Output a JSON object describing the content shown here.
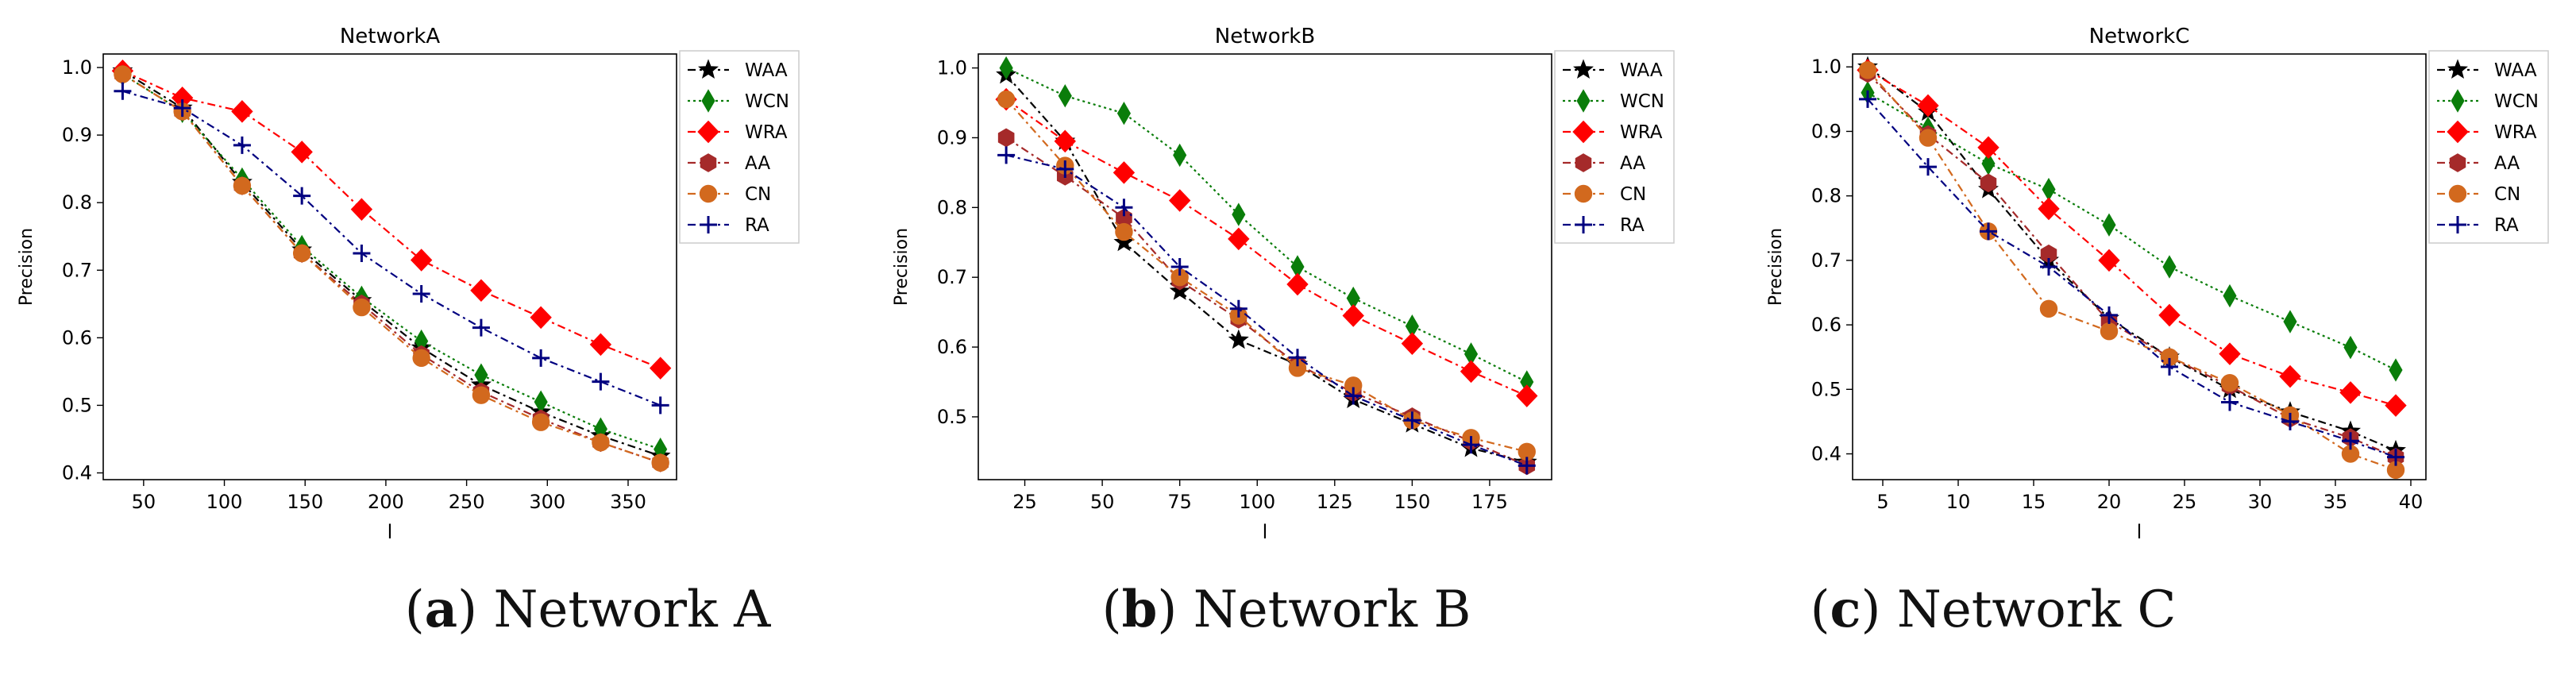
{
  "figure": {
    "panels": [
      {
        "letter": "a",
        "text": "Network A"
      },
      {
        "letter": "b",
        "text": "Network B"
      },
      {
        "letter": "c",
        "text": "Network C"
      }
    ],
    "series_styles": {
      "WAA": {
        "color": "#000000",
        "marker": "star",
        "dash": "10,5,3,5"
      },
      "WCN": {
        "color": "#0a7d0a",
        "marker": "thin-diamond",
        "dash": "3,4"
      },
      "WRA": {
        "color": "#ff0000",
        "marker": "diamond",
        "dash": "10,5,3,5"
      },
      "AA": {
        "color": "#a52a2a",
        "marker": "hexagon",
        "dash": "10,5,3,5"
      },
      "CN": {
        "color": "#d2691e",
        "marker": "circle",
        "dash": "10,5,3,5"
      },
      "RA": {
        "color": "#000080",
        "marker": "plus",
        "dash": "10,5,3,5"
      }
    }
  },
  "chart_data": [
    {
      "type": "line",
      "title": "NetworkA",
      "xlabel": "l",
      "ylabel": "Precision",
      "xlim": [
        25,
        380
      ],
      "ylim": [
        0.39,
        1.02
      ],
      "xticks": [
        50,
        100,
        150,
        200,
        250,
        300,
        350
      ],
      "yticks": [
        0.4,
        0.5,
        0.6,
        0.7,
        0.8,
        0.9,
        1.0
      ],
      "ytick_labels": [
        "0.4",
        "0.5",
        "0.6",
        "0.7",
        "0.8",
        "0.9",
        "1.0"
      ],
      "legend": "outside-right-top",
      "x": [
        37,
        74,
        111,
        148,
        185,
        222,
        259,
        296,
        333,
        370
      ],
      "series": [
        {
          "name": "WAA",
          "values": [
            0.995,
            0.94,
            0.83,
            0.73,
            0.655,
            0.585,
            0.53,
            0.49,
            0.455,
            0.425
          ]
        },
        {
          "name": "WCN",
          "values": [
            0.99,
            0.935,
            0.835,
            0.735,
            0.66,
            0.595,
            0.545,
            0.505,
            0.465,
            0.435
          ]
        },
        {
          "name": "WRA",
          "values": [
            0.995,
            0.955,
            0.935,
            0.875,
            0.79,
            0.715,
            0.67,
            0.63,
            0.59,
            0.555
          ]
        },
        {
          "name": "AA",
          "values": [
            0.99,
            0.935,
            0.825,
            0.725,
            0.65,
            0.575,
            0.52,
            0.48,
            0.445,
            0.415
          ]
        },
        {
          "name": "CN",
          "values": [
            0.99,
            0.935,
            0.825,
            0.725,
            0.645,
            0.57,
            0.515,
            0.475,
            0.445,
            0.415
          ]
        },
        {
          "name": "RA",
          "values": [
            0.965,
            0.94,
            0.885,
            0.81,
            0.725,
            0.665,
            0.615,
            0.57,
            0.535,
            0.5
          ]
        }
      ]
    },
    {
      "type": "line",
      "title": "NetworkB",
      "xlabel": "l",
      "ylabel": "Precision",
      "xlim": [
        10,
        195
      ],
      "ylim": [
        0.41,
        1.02
      ],
      "xticks": [
        25,
        50,
        75,
        100,
        125,
        150,
        175
      ],
      "yticks": [
        0.5,
        0.6,
        0.7,
        0.8,
        0.9,
        1.0
      ],
      "ytick_labels": [
        "0.5",
        "0.6",
        "0.7",
        "0.8",
        "0.9",
        "1.0"
      ],
      "legend": "outside-right-top",
      "x": [
        19,
        38,
        57,
        75,
        94,
        113,
        131,
        150,
        169,
        187
      ],
      "series": [
        {
          "name": "WAA",
          "values": [
            0.99,
            0.895,
            0.75,
            0.68,
            0.61,
            0.575,
            0.525,
            0.49,
            0.455,
            0.435
          ]
        },
        {
          "name": "WCN",
          "values": [
            1.0,
            0.96,
            0.935,
            0.875,
            0.79,
            0.715,
            0.67,
            0.63,
            0.59,
            0.55
          ]
        },
        {
          "name": "WRA",
          "values": [
            0.955,
            0.895,
            0.85,
            0.81,
            0.755,
            0.69,
            0.645,
            0.605,
            0.565,
            0.53
          ]
        },
        {
          "name": "AA",
          "values": [
            0.9,
            0.845,
            0.785,
            0.695,
            0.64,
            0.575,
            0.535,
            0.5,
            0.465,
            0.43
          ]
        },
        {
          "name": "CN",
          "values": [
            0.955,
            0.86,
            0.765,
            0.7,
            0.645,
            0.57,
            0.545,
            0.495,
            0.47,
            0.45
          ]
        },
        {
          "name": "RA",
          "values": [
            0.875,
            0.855,
            0.8,
            0.715,
            0.655,
            0.585,
            0.53,
            0.495,
            0.46,
            0.43
          ]
        }
      ]
    },
    {
      "type": "line",
      "title": "NetworkC",
      "xlabel": "l",
      "ylabel": "Precision",
      "xlim": [
        3,
        41
      ],
      "ylim": [
        0.36,
        1.02
      ],
      "xticks": [
        5,
        10,
        15,
        20,
        25,
        30,
        35,
        40
      ],
      "yticks": [
        0.4,
        0.5,
        0.6,
        0.7,
        0.8,
        0.9,
        1.0
      ],
      "ytick_labels": [
        "0.4",
        "0.5",
        "0.6",
        "0.7",
        "0.8",
        "0.9",
        "1.0"
      ],
      "legend": "outside-right-top",
      "x": [
        4,
        8,
        12,
        16,
        20,
        24,
        28,
        32,
        36,
        39
      ],
      "series": [
        {
          "name": "WAA",
          "values": [
            1.0,
            0.93,
            0.81,
            0.7,
            0.61,
            0.55,
            0.5,
            0.465,
            0.435,
            0.405
          ]
        },
        {
          "name": "WCN",
          "values": [
            0.96,
            0.905,
            0.85,
            0.81,
            0.755,
            0.69,
            0.645,
            0.605,
            0.565,
            0.53
          ]
        },
        {
          "name": "WRA",
          "values": [
            0.995,
            0.94,
            0.875,
            0.78,
            0.7,
            0.615,
            0.555,
            0.52,
            0.495,
            0.475
          ]
        },
        {
          "name": "AA",
          "values": [
            0.99,
            0.895,
            0.82,
            0.71,
            0.605,
            0.55,
            0.505,
            0.455,
            0.425,
            0.395
          ]
        },
        {
          "name": "CN",
          "values": [
            0.995,
            0.89,
            0.745,
            0.625,
            0.59,
            0.55,
            0.51,
            0.46,
            0.4,
            0.375
          ]
        },
        {
          "name": "RA",
          "values": [
            0.95,
            0.845,
            0.745,
            0.69,
            0.615,
            0.535,
            0.48,
            0.45,
            0.42,
            0.395
          ]
        }
      ]
    }
  ]
}
